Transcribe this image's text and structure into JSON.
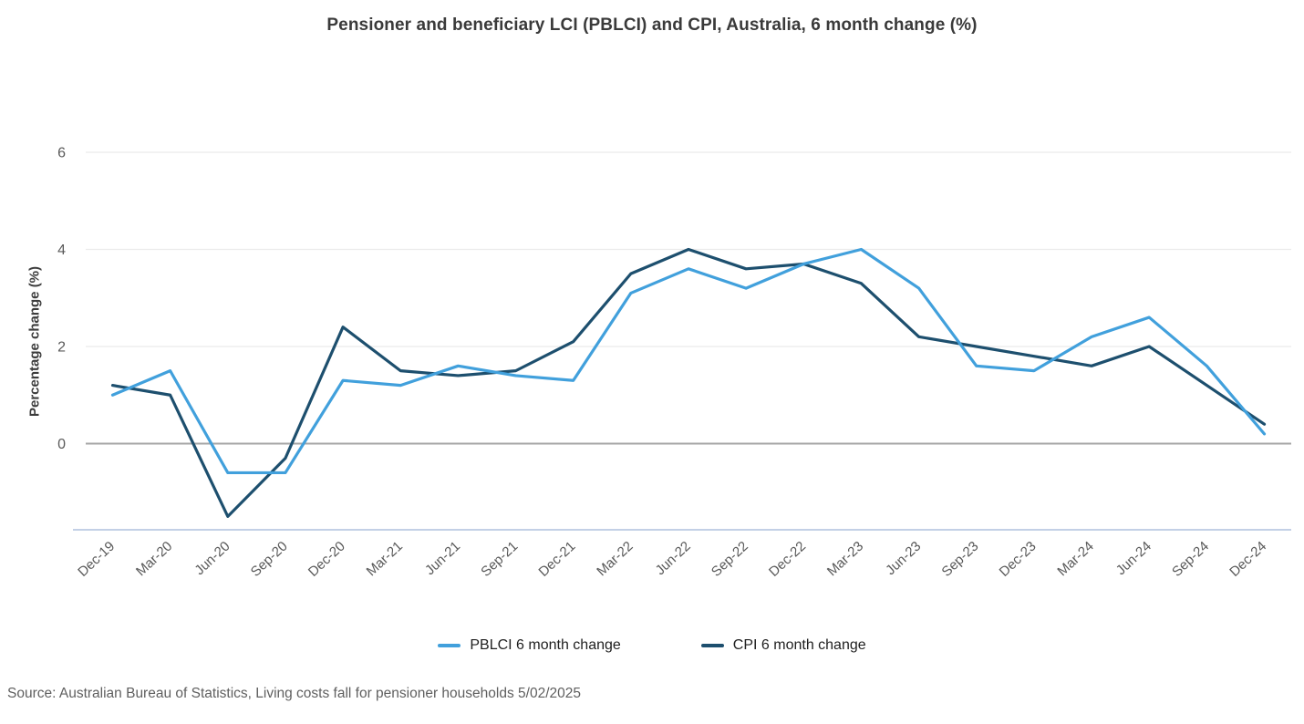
{
  "page": {
    "title": "Pensioner and beneficiary LCI (PBLCI) and CPI, Australia, 6 month change (%)",
    "source": "Source: Australian Bureau of Statistics, Living costs fall for pensioner households 5/02/2025"
  },
  "chart_data": {
    "type": "line",
    "title": "Pensioner and beneficiary LCI (PBLCI) and CPI, Australia, 6 month change (%)",
    "xlabel": "",
    "ylabel": "Percentage change (%)",
    "categories": [
      "Dec-19",
      "Mar-20",
      "Jun-20",
      "Sep-20",
      "Dec-20",
      "Mar-21",
      "Jun-21",
      "Sep-21",
      "Dec-21",
      "Mar-22",
      "Jun-22",
      "Sep-22",
      "Dec-22",
      "Mar-23",
      "Jun-23",
      "Sep-23",
      "Dec-23",
      "Mar-24",
      "Jun-24",
      "Sep-24",
      "Dec-24"
    ],
    "series": [
      {
        "name": "PBLCI 6 month change",
        "id": "pblci",
        "color": "#41a0dc",
        "values": [
          1.0,
          1.5,
          -0.6,
          -0.6,
          1.3,
          1.2,
          1.6,
          1.4,
          1.3,
          3.1,
          3.6,
          3.2,
          3.7,
          4.0,
          3.2,
          1.6,
          1.5,
          2.2,
          2.6,
          1.6,
          0.2
        ]
      },
      {
        "name": "CPI 6 month change",
        "id": "cpi",
        "color": "#1d4f6e",
        "values": [
          1.2,
          1.0,
          -1.5,
          -0.3,
          2.4,
          1.5,
          1.4,
          1.5,
          2.1,
          3.5,
          4.0,
          3.6,
          3.7,
          3.3,
          2.2,
          2.0,
          1.8,
          1.6,
          2.0,
          1.2,
          0.4
        ]
      }
    ],
    "yticks": [
      0,
      2,
      4,
      6
    ],
    "ylim": [
      -1.8,
      6.2
    ],
    "grid": true,
    "legend_position": "bottom",
    "colors": {
      "gridline": "#ebebeb",
      "zero_line": "#a6a6a6",
      "axis_line": "#c3d0e6",
      "tick_text": "#595959",
      "title_text": "#3a3a3a",
      "source_text": "#5f5f5f"
    }
  }
}
